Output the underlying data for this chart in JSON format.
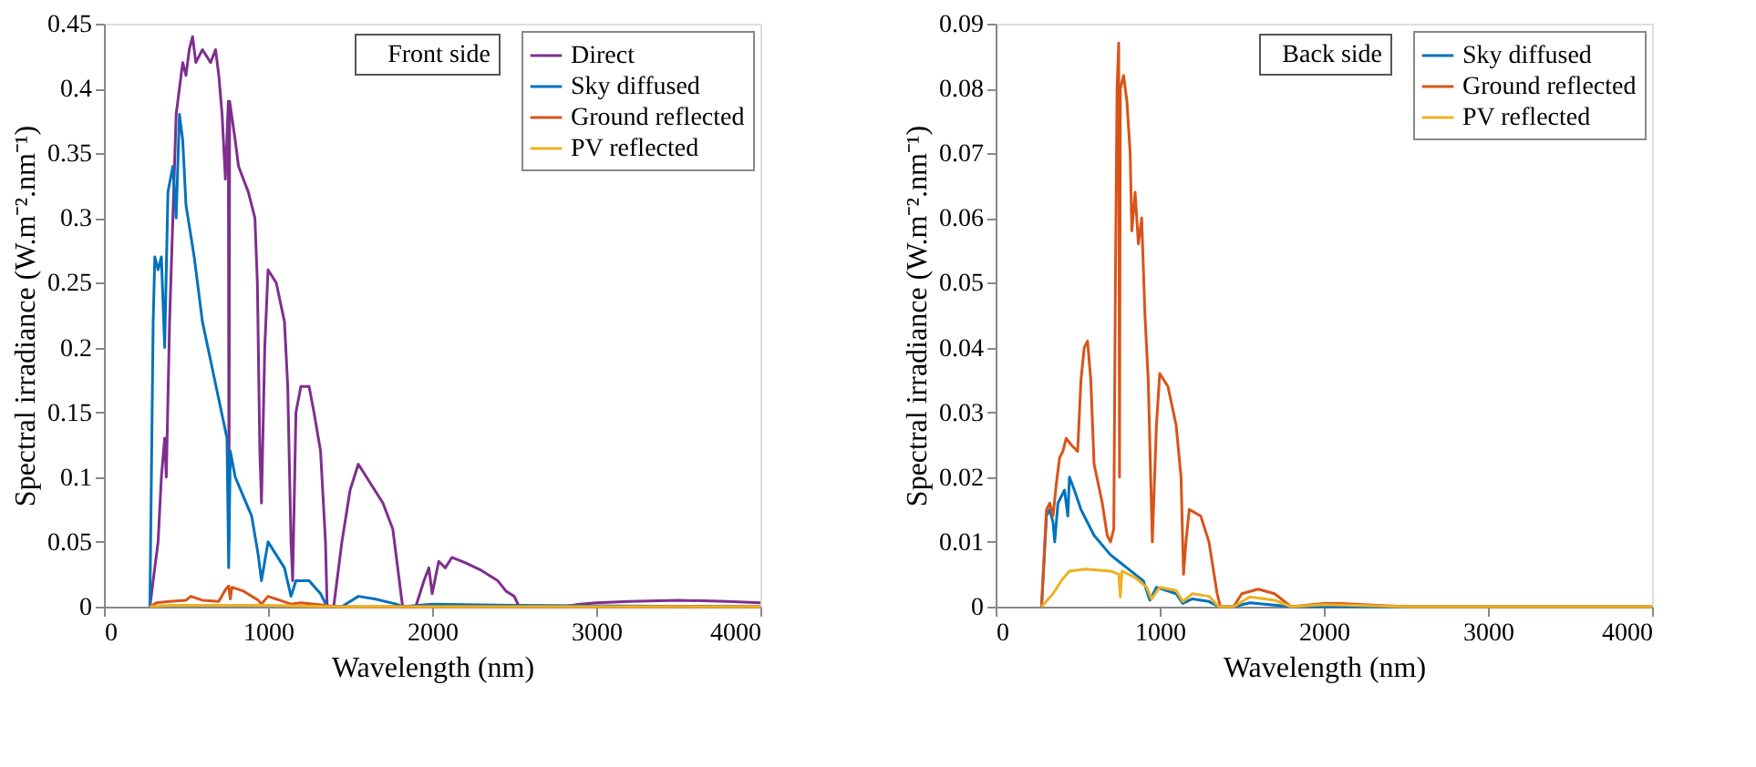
{
  "chart_data": [
    {
      "type": "line",
      "xlabel": "Wavelength (nm)",
      "ylabel": "Spectral irradiance (W.m⁻².nm⁻¹)",
      "annotations": [
        "Front side"
      ],
      "xlim": [
        0,
        4000
      ],
      "xticks": [
        0,
        1000,
        2000,
        3000,
        4000
      ],
      "ylim": [
        0,
        0.45
      ],
      "yticks": [
        0,
        0.05,
        0.1,
        0.15,
        0.2,
        0.25,
        0.3,
        0.35,
        0.4,
        0.45
      ],
      "grid": false,
      "legend": "top right",
      "line_style": "solid",
      "marker": "none",
      "series": [
        {
          "name": "Direct",
          "color": "#7e2f8e",
          "x": [
            280,
            300,
            330,
            350,
            370,
            380,
            400,
            420,
            440,
            460,
            480,
            500,
            520,
            540,
            560,
            600,
            650,
            680,
            700,
            720,
            740,
            758,
            762,
            766,
            800,
            820,
            850,
            880,
            900,
            920,
            935,
            950,
            960,
            980,
            1000,
            1050,
            1100,
            1120,
            1140,
            1150,
            1170,
            1200,
            1250,
            1280,
            1320,
            1350,
            1360,
            1400,
            1420,
            1450,
            1500,
            1550,
            1600,
            1650,
            1700,
            1760,
            1800,
            1820,
            1900,
            1950,
            1980,
            2000,
            2040,
            2080,
            2120,
            2200,
            2300,
            2400,
            2450,
            2500,
            2530,
            2800,
            2900,
            3000,
            3200,
            3500,
            3800,
            4000
          ],
          "values": [
            0,
            0.02,
            0.05,
            0.1,
            0.13,
            0.1,
            0.22,
            0.3,
            0.38,
            0.4,
            0.42,
            0.41,
            0.43,
            0.44,
            0.42,
            0.43,
            0.42,
            0.43,
            0.41,
            0.38,
            0.33,
            0.39,
            0.05,
            0.39,
            0.36,
            0.34,
            0.33,
            0.32,
            0.31,
            0.3,
            0.25,
            0.12,
            0.08,
            0.2,
            0.26,
            0.25,
            0.22,
            0.17,
            0.05,
            0.02,
            0.15,
            0.17,
            0.17,
            0.15,
            0.12,
            0.05,
            0,
            0,
            0.02,
            0.05,
            0.09,
            0.11,
            0.1,
            0.09,
            0.08,
            0.06,
            0.02,
            0,
            0,
            0.02,
            0.03,
            0.01,
            0.035,
            0.03,
            0.038,
            0.034,
            0.028,
            0.02,
            0.012,
            0.008,
            0,
            0,
            0.002,
            0.003,
            0.004,
            0.005,
            0.004,
            0.003
          ]
        },
        {
          "name": "Sky diffused",
          "color": "#0072bd",
          "x": [
            280,
            300,
            310,
            330,
            350,
            370,
            390,
            420,
            440,
            460,
            480,
            500,
            550,
            600,
            650,
            700,
            750,
            760,
            770,
            800,
            850,
            900,
            940,
            960,
            1000,
            1050,
            1100,
            1140,
            1170,
            1250,
            1320,
            1360,
            1450,
            1550,
            1650,
            1780,
            1820,
            2000,
            2500,
            4000
          ],
          "values": [
            0,
            0.22,
            0.27,
            0.26,
            0.27,
            0.2,
            0.32,
            0.34,
            0.3,
            0.38,
            0.36,
            0.31,
            0.27,
            0.22,
            0.19,
            0.16,
            0.13,
            0.03,
            0.12,
            0.1,
            0.085,
            0.07,
            0.04,
            0.02,
            0.05,
            0.04,
            0.03,
            0.008,
            0.02,
            0.02,
            0.01,
            0,
            0,
            0.008,
            0.006,
            0.002,
            0,
            0.002,
            0.001,
            0
          ]
        },
        {
          "name": "Ground reflected",
          "color": "#d95319",
          "x": [
            280,
            320,
            400,
            500,
            530,
            600,
            700,
            740,
            760,
            770,
            780,
            850,
            940,
            960,
            1000,
            1140,
            1200,
            1350,
            1400,
            4000
          ],
          "values": [
            0,
            0.003,
            0.004,
            0.005,
            0.008,
            0.005,
            0.004,
            0.013,
            0.016,
            0.006,
            0.015,
            0.012,
            0.005,
            0.002,
            0.008,
            0.002,
            0.003,
            0.001,
            0,
            0
          ]
        },
        {
          "name": "PV reflected",
          "color": "#edb120",
          "x": [
            280,
            400,
            1000,
            1400,
            4000
          ],
          "values": [
            0,
            0.001,
            0.001,
            0,
            0
          ]
        }
      ]
    },
    {
      "type": "line",
      "xlabel": "Wavelength (nm)",
      "ylabel": "Spectral irradiance (W.m⁻².nm⁻¹)",
      "annotations": [
        "Back side"
      ],
      "xlim": [
        0,
        4000
      ],
      "xticks": [
        0,
        1000,
        2000,
        3000,
        4000
      ],
      "ylim": [
        0,
        0.09
      ],
      "yticks": [
        0,
        0.01,
        0.02,
        0.03,
        0.04,
        0.05,
        0.06,
        0.07,
        0.08,
        0.09
      ],
      "grid": false,
      "legend": "top right",
      "line_style": "solid",
      "marker": "none",
      "series": [
        {
          "name": "Sky diffused",
          "color": "#0072bd",
          "x": [
            280,
            310,
            330,
            350,
            360,
            380,
            420,
            440,
            450,
            480,
            520,
            600,
            700,
            750,
            800,
            900,
            940,
            980,
            1100,
            1140,
            1200,
            1300,
            1360,
            1450,
            1550,
            1800,
            4000
          ],
          "values": [
            0,
            0.014,
            0.015,
            0.013,
            0.01,
            0.016,
            0.018,
            0.014,
            0.02,
            0.018,
            0.015,
            0.011,
            0.008,
            0.007,
            0.006,
            0.004,
            0.001,
            0.003,
            0.002,
            0.0005,
            0.0012,
            0.0008,
            0,
            0,
            0.0006,
            0,
            0
          ]
        },
        {
          "name": "Ground reflected",
          "color": "#d95319",
          "x": [
            280,
            310,
            330,
            350,
            370,
            390,
            410,
            430,
            460,
            500,
            520,
            540,
            560,
            580,
            600,
            650,
            680,
            700,
            720,
            730,
            740,
            750,
            755,
            760,
            780,
            800,
            820,
            830,
            850,
            870,
            890,
            910,
            930,
            945,
            955,
            980,
            1000,
            1050,
            1100,
            1130,
            1145,
            1160,
            1180,
            1250,
            1300,
            1350,
            1370,
            1450,
            1500,
            1600,
            1700,
            1800,
            2000,
            2100,
            2500,
            4000
          ],
          "values": [
            0,
            0.015,
            0.016,
            0.014,
            0.019,
            0.023,
            0.024,
            0.026,
            0.025,
            0.024,
            0.035,
            0.04,
            0.041,
            0.035,
            0.022,
            0.016,
            0.011,
            0.01,
            0.012,
            0.05,
            0.08,
            0.087,
            0.02,
            0.08,
            0.082,
            0.078,
            0.07,
            0.058,
            0.064,
            0.056,
            0.06,
            0.045,
            0.035,
            0.02,
            0.01,
            0.028,
            0.036,
            0.034,
            0.028,
            0.02,
            0.005,
            0.01,
            0.015,
            0.014,
            0.01,
            0.002,
            0,
            0,
            0.002,
            0.0027,
            0.002,
            0,
            0.0005,
            0.0005,
            0,
            0
          ]
        },
        {
          "name": "PV reflected",
          "color": "#edb120",
          "x": [
            280,
            350,
            400,
            450,
            550,
            700,
            750,
            760,
            770,
            850,
            920,
            950,
            1000,
            1100,
            1140,
            1200,
            1300,
            1360,
            1450,
            1550,
            1700,
            1800,
            2000,
            2500,
            4000
          ],
          "values": [
            0,
            0.002,
            0.004,
            0.0055,
            0.0058,
            0.0055,
            0.005,
            0.0015,
            0.0055,
            0.0045,
            0.003,
            0.0012,
            0.003,
            0.0025,
            0.0008,
            0.002,
            0.0016,
            0,
            0,
            0.0015,
            0.001,
            0,
            0.0003,
            0,
            0
          ]
        }
      ]
    }
  ]
}
